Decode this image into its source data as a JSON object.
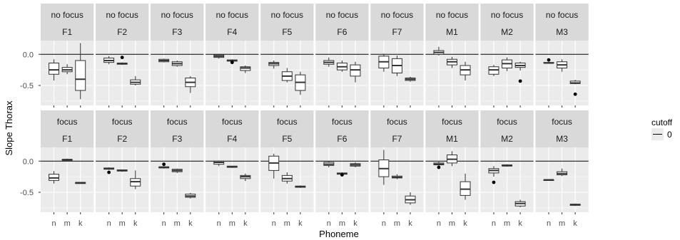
{
  "chart_data": {
    "type": "boxplot",
    "xlabel": "Phoneme",
    "ylabel": "Slope Thorax",
    "categories": [
      "n",
      "m",
      "k"
    ],
    "y_ticks": [
      0.0,
      -0.5
    ],
    "y_tick_labels": [
      "0.0",
      "-0.5"
    ],
    "ylim": [
      -0.82,
      0.22
    ],
    "reference_line": 0,
    "legend": {
      "title": "cutoff",
      "entries": [
        "0"
      ],
      "position": "right"
    },
    "row_labels": [
      "no focus",
      "focus"
    ],
    "col_labels": [
      "F1",
      "F2",
      "F3",
      "F4",
      "F5",
      "F6",
      "F7",
      "M1",
      "M2",
      "M3"
    ],
    "panels": [
      {
        "row": "no focus",
        "col": "F1",
        "boxes": [
          {
            "cat": "n",
            "min": -0.42,
            "q1": -0.32,
            "median": -0.25,
            "q3": -0.14,
            "max": -0.08,
            "outliers": []
          },
          {
            "cat": "m",
            "min": -0.32,
            "q1": -0.28,
            "median": -0.25,
            "q3": -0.21,
            "max": -0.16,
            "outliers": []
          },
          {
            "cat": "k",
            "min": -0.72,
            "q1": -0.58,
            "median": -0.4,
            "q3": -0.1,
            "max": 0.18,
            "outliers": []
          }
        ]
      },
      {
        "row": "no focus",
        "col": "F2",
        "boxes": [
          {
            "cat": "n",
            "min": -0.16,
            "q1": -0.13,
            "median": -0.1,
            "q3": -0.06,
            "max": -0.03,
            "outliers": []
          },
          {
            "cat": "m",
            "min": -0.17,
            "q1": -0.16,
            "median": -0.15,
            "q3": -0.14,
            "max": -0.13,
            "outliers": [
              -0.05
            ]
          },
          {
            "cat": "k",
            "min": -0.5,
            "q1": -0.48,
            "median": -0.45,
            "q3": -0.41,
            "max": -0.35,
            "outliers": []
          }
        ]
      },
      {
        "row": "no focus",
        "col": "F3",
        "boxes": [
          {
            "cat": "n",
            "min": -0.13,
            "q1": -0.12,
            "median": -0.1,
            "q3": -0.08,
            "max": -0.07,
            "outliers": []
          },
          {
            "cat": "m",
            "min": -0.2,
            "q1": -0.18,
            "median": -0.15,
            "q3": -0.12,
            "max": -0.1,
            "outliers": []
          },
          {
            "cat": "k",
            "min": -0.62,
            "q1": -0.52,
            "median": -0.45,
            "q3": -0.38,
            "max": -0.35,
            "outliers": []
          }
        ]
      },
      {
        "row": "no focus",
        "col": "F4",
        "boxes": [
          {
            "cat": "n",
            "min": -0.07,
            "q1": -0.05,
            "median": -0.03,
            "q3": -0.01,
            "max": 0.01,
            "outliers": []
          },
          {
            "cat": "m",
            "min": -0.12,
            "q1": -0.11,
            "median": -0.1,
            "q3": -0.09,
            "max": -0.08,
            "outliers": [
              -0.13
            ]
          },
          {
            "cat": "k",
            "min": -0.3,
            "q1": -0.26,
            "median": -0.22,
            "q3": -0.2,
            "max": -0.18,
            "outliers": []
          }
        ]
      },
      {
        "row": "no focus",
        "col": "F5",
        "boxes": [
          {
            "cat": "n",
            "min": -0.23,
            "q1": -0.18,
            "median": -0.15,
            "q3": -0.13,
            "max": -0.1,
            "outliers": []
          },
          {
            "cat": "m",
            "min": -0.45,
            "q1": -0.42,
            "median": -0.35,
            "q3": -0.28,
            "max": -0.22,
            "outliers": []
          },
          {
            "cat": "k",
            "min": -0.65,
            "q1": -0.58,
            "median": -0.45,
            "q3": -0.33,
            "max": -0.28,
            "outliers": []
          }
        ]
      },
      {
        "row": "no focus",
        "col": "F6",
        "boxes": [
          {
            "cat": "n",
            "min": -0.2,
            "q1": -0.16,
            "median": -0.13,
            "q3": -0.1,
            "max": -0.05,
            "outliers": []
          },
          {
            "cat": "m",
            "min": -0.28,
            "q1": -0.25,
            "median": -0.2,
            "q3": -0.14,
            "max": -0.1,
            "outliers": []
          },
          {
            "cat": "k",
            "min": -0.45,
            "q1": -0.35,
            "median": -0.25,
            "q3": -0.17,
            "max": -0.12,
            "outliers": []
          }
        ]
      },
      {
        "row": "no focus",
        "col": "F7",
        "boxes": [
          {
            "cat": "n",
            "min": -0.28,
            "q1": -0.22,
            "median": -0.12,
            "q3": -0.03,
            "max": 0.01,
            "outliers": []
          },
          {
            "cat": "m",
            "min": -0.35,
            "q1": -0.3,
            "median": -0.18,
            "q3": -0.07,
            "max": -0.02,
            "outliers": []
          },
          {
            "cat": "k",
            "min": -0.44,
            "q1": -0.42,
            "median": -0.4,
            "q3": -0.38,
            "max": -0.36,
            "outliers": []
          }
        ]
      },
      {
        "row": "no focus",
        "col": "M1",
        "boxes": [
          {
            "cat": "n",
            "min": -0.02,
            "q1": 0.0,
            "median": 0.03,
            "q3": 0.06,
            "max": 0.12,
            "outliers": []
          },
          {
            "cat": "m",
            "min": -0.22,
            "q1": -0.17,
            "median": -0.12,
            "q3": -0.08,
            "max": -0.04,
            "outliers": []
          },
          {
            "cat": "k",
            "min": -0.42,
            "q1": -0.33,
            "median": -0.25,
            "q3": -0.18,
            "max": -0.12,
            "outliers": []
          }
        ]
      },
      {
        "row": "no focus",
        "col": "M2",
        "boxes": [
          {
            "cat": "n",
            "min": -0.35,
            "q1": -0.32,
            "median": -0.25,
            "q3": -0.2,
            "max": -0.17,
            "outliers": []
          },
          {
            "cat": "m",
            "min": -0.27,
            "q1": -0.22,
            "median": -0.15,
            "q3": -0.09,
            "max": -0.05,
            "outliers": []
          },
          {
            "cat": "k",
            "min": -0.26,
            "q1": -0.21,
            "median": -0.18,
            "q3": -0.14,
            "max": -0.12,
            "outliers": [
              -0.43
            ]
          }
        ]
      },
      {
        "row": "no focus",
        "col": "M3",
        "boxes": [
          {
            "cat": "n",
            "min": -0.15,
            "q1": -0.14,
            "median": -0.14,
            "q3": -0.13,
            "max": -0.12,
            "outliers": [
              -0.09
            ]
          },
          {
            "cat": "m",
            "min": -0.28,
            "q1": -0.22,
            "median": -0.17,
            "q3": -0.12,
            "max": -0.08,
            "outliers": []
          },
          {
            "cat": "k",
            "min": -0.48,
            "q1": -0.47,
            "median": -0.46,
            "q3": -0.43,
            "max": -0.41,
            "outliers": [
              -0.64
            ]
          }
        ]
      },
      {
        "row": "focus",
        "col": "F1",
        "boxes": [
          {
            "cat": "n",
            "min": -0.36,
            "q1": -0.31,
            "median": -0.27,
            "q3": -0.21,
            "max": -0.16,
            "outliers": []
          },
          {
            "cat": "m",
            "min": 0.0,
            "q1": 0.01,
            "median": 0.02,
            "q3": 0.03,
            "max": 0.04,
            "outliers": []
          },
          {
            "cat": "k",
            "min": -0.36,
            "q1": -0.36,
            "median": -0.35,
            "q3": -0.34,
            "max": -0.34,
            "outliers": []
          }
        ]
      },
      {
        "row": "focus",
        "col": "F2",
        "boxes": [
          {
            "cat": "n",
            "min": -0.14,
            "q1": -0.13,
            "median": -0.12,
            "q3": -0.11,
            "max": -0.1,
            "outliers": [
              -0.18
            ]
          },
          {
            "cat": "m",
            "min": -0.17,
            "q1": -0.16,
            "median": -0.15,
            "q3": -0.14,
            "max": -0.14,
            "outliers": []
          },
          {
            "cat": "k",
            "min": -0.45,
            "q1": -0.4,
            "median": -0.33,
            "q3": -0.28,
            "max": -0.15,
            "outliers": []
          }
        ]
      },
      {
        "row": "focus",
        "col": "F3",
        "boxes": [
          {
            "cat": "n",
            "min": -0.12,
            "q1": -0.11,
            "median": -0.1,
            "q3": -0.09,
            "max": -0.08,
            "outliers": [
              -0.05
            ]
          },
          {
            "cat": "m",
            "min": -0.19,
            "q1": -0.17,
            "median": -0.15,
            "q3": -0.13,
            "max": -0.12,
            "outliers": []
          },
          {
            "cat": "k",
            "min": -0.6,
            "q1": -0.58,
            "median": -0.56,
            "q3": -0.53,
            "max": -0.51,
            "outliers": []
          }
        ]
      },
      {
        "row": "focus",
        "col": "F4",
        "boxes": [
          {
            "cat": "n",
            "min": -0.08,
            "q1": -0.05,
            "median": -0.02,
            "q3": 0.0,
            "max": 0.01,
            "outliers": []
          },
          {
            "cat": "m",
            "min": -0.11,
            "q1": -0.1,
            "median": -0.09,
            "q3": -0.08,
            "max": -0.08,
            "outliers": []
          },
          {
            "cat": "k",
            "min": -0.32,
            "q1": -0.28,
            "median": -0.25,
            "q3": -0.23,
            "max": -0.2,
            "outliers": []
          }
        ]
      },
      {
        "row": "focus",
        "col": "F5",
        "boxes": [
          {
            "cat": "n",
            "min": -0.28,
            "q1": -0.15,
            "median": -0.03,
            "q3": 0.08,
            "max": 0.12,
            "outliers": []
          },
          {
            "cat": "m",
            "min": -0.36,
            "q1": -0.32,
            "median": -0.28,
            "q3": -0.23,
            "max": -0.18,
            "outliers": []
          },
          {
            "cat": "k",
            "min": -0.43,
            "q1": -0.42,
            "median": -0.41,
            "q3": -0.4,
            "max": -0.39,
            "outliers": []
          }
        ]
      },
      {
        "row": "focus",
        "col": "F6",
        "boxes": [
          {
            "cat": "n",
            "min": -0.1,
            "q1": -0.07,
            "median": -0.05,
            "q3": -0.02,
            "max": 0.0,
            "outliers": []
          },
          {
            "cat": "m",
            "min": -0.22,
            "q1": -0.21,
            "median": -0.2,
            "q3": -0.19,
            "max": -0.18,
            "outliers": [
              -0.22
            ]
          },
          {
            "cat": "k",
            "min": -0.1,
            "q1": -0.08,
            "median": -0.06,
            "q3": -0.04,
            "max": -0.02,
            "outliers": []
          }
        ]
      },
      {
        "row": "focus",
        "col": "F7",
        "boxes": [
          {
            "cat": "n",
            "min": -0.38,
            "q1": -0.25,
            "median": -0.12,
            "q3": 0.02,
            "max": 0.18,
            "outliers": []
          },
          {
            "cat": "m",
            "min": -0.29,
            "q1": -0.27,
            "median": -0.26,
            "q3": -0.24,
            "max": -0.21,
            "outliers": []
          },
          {
            "cat": "k",
            "min": -0.7,
            "q1": -0.67,
            "median": -0.62,
            "q3": -0.56,
            "max": -0.5,
            "outliers": []
          }
        ]
      },
      {
        "row": "focus",
        "col": "M1",
        "boxes": [
          {
            "cat": "n",
            "min": -0.08,
            "q1": -0.06,
            "median": -0.05,
            "q3": -0.03,
            "max": -0.01,
            "outliers": [
              -0.1
            ]
          },
          {
            "cat": "m",
            "min": -0.08,
            "q1": -0.03,
            "median": 0.03,
            "q3": 0.1,
            "max": 0.16,
            "outliers": []
          },
          {
            "cat": "k",
            "min": -0.62,
            "q1": -0.55,
            "median": -0.45,
            "q3": -0.33,
            "max": -0.2,
            "outliers": []
          }
        ]
      },
      {
        "row": "focus",
        "col": "M2",
        "boxes": [
          {
            "cat": "n",
            "min": -0.25,
            "q1": -0.19,
            "median": -0.15,
            "q3": -0.12,
            "max": -0.08,
            "outliers": [
              -0.34
            ]
          },
          {
            "cat": "m",
            "min": -0.09,
            "q1": -0.08,
            "median": -0.07,
            "q3": -0.06,
            "max": -0.05,
            "outliers": []
          },
          {
            "cat": "k",
            "min": -0.74,
            "q1": -0.72,
            "median": -0.68,
            "q3": -0.65,
            "max": -0.62,
            "outliers": []
          }
        ]
      },
      {
        "row": "focus",
        "col": "M3",
        "boxes": [
          {
            "cat": "n",
            "min": -0.31,
            "q1": -0.31,
            "median": -0.3,
            "q3": -0.3,
            "max": -0.3,
            "outliers": []
          },
          {
            "cat": "m",
            "min": -0.24,
            "q1": -0.22,
            "median": -0.2,
            "q3": -0.17,
            "max": -0.12,
            "outliers": []
          },
          {
            "cat": "k",
            "min": -0.72,
            "q1": -0.71,
            "median": -0.7,
            "q3": -0.69,
            "max": -0.68,
            "outliers": []
          }
        ]
      }
    ]
  },
  "colors": {
    "panel_background": "#ebebeb",
    "strip_background": "#d9d9d9",
    "grid_line": "#ffffff",
    "box_fill": "#ffffff",
    "box_line": "#333333",
    "reference_line": "#000000",
    "tick_text": "#4d4d4d"
  }
}
